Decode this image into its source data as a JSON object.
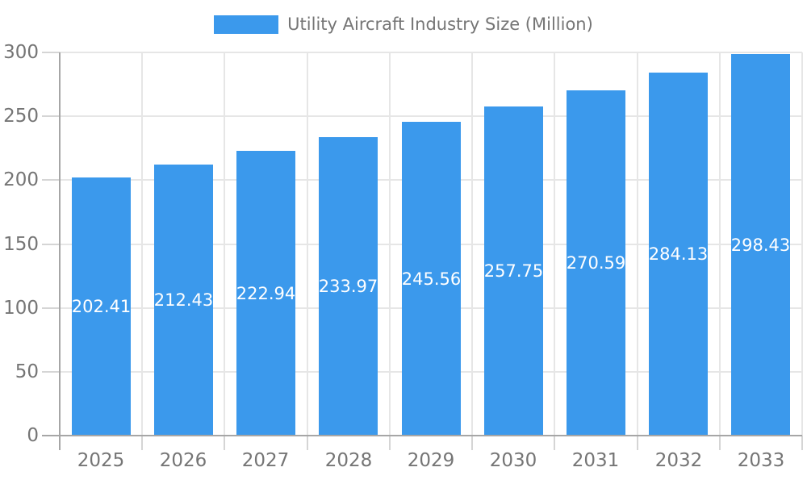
{
  "legend": {
    "label": "Utility Aircraft Industry Size (Million)"
  },
  "chart_data": {
    "type": "bar",
    "title": "Utility Aircraft Industry Size (Million)",
    "categories": [
      "2025",
      "2026",
      "2027",
      "2028",
      "2029",
      "2030",
      "2031",
      "2032",
      "2033"
    ],
    "series": [
      {
        "name": "Utility Aircraft Industry Size (Million)",
        "values": [
          202.41,
          212.43,
          222.94,
          233.97,
          245.56,
          257.75,
          270.59,
          284.13,
          298.43
        ]
      }
    ],
    "value_labels": [
      "202.41",
      "212.43",
      "222.94",
      "233.97",
      "245.56",
      "257.75",
      "270.59",
      "284.13",
      "298.43"
    ],
    "xlabel": "",
    "ylabel": "",
    "ylim": [
      0,
      300
    ],
    "yticks": [
      0,
      50,
      100,
      150,
      200,
      250,
      300
    ],
    "grid": true,
    "legend_position": "top",
    "colors": {
      "bar": "#3B99EC",
      "bar_label": "#FFFFFF",
      "axis_text": "#757575",
      "grid_line": "#E6E6E6",
      "axis_line": "#A6A6A6",
      "tick": "#D5D5D5",
      "background": "#FFFFFF"
    }
  }
}
